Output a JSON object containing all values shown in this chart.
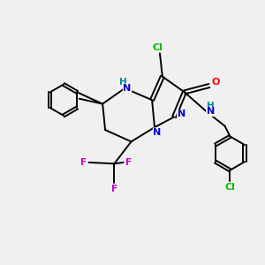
{
  "bg_color": "#f0f0f0",
  "bond_color": "#000000",
  "atom_colors": {
    "N": "#0000cd",
    "O": "#ff0000",
    "Cl": "#00bb00",
    "F": "#cc00cc",
    "NH": "#008b8b",
    "C": "#000000"
  }
}
